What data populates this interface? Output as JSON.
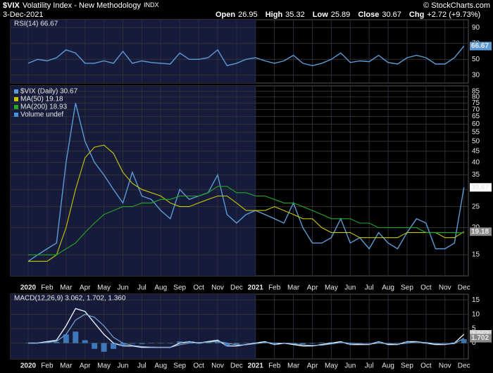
{
  "header": {
    "symbol": "$VIX",
    "name": "Volatility Index - New Methodology",
    "exchange": "INDX",
    "date": "3-Dec-2021",
    "quote": [
      {
        "label": "Open",
        "value": 26.95
      },
      {
        "label": "High",
        "value": 35.32
      },
      {
        "label": "Low",
        "value": 25.89
      },
      {
        "label": "Close",
        "value": 30.67
      },
      {
        "label": "Chg",
        "value": "+2.72 (+9.73%)"
      }
    ],
    "copyright": "© StockCharts.com"
  },
  "chart_data": [
    {
      "type": "line",
      "title": "RSI(14) 66.67",
      "ylim": [
        20,
        100
      ],
      "yticks": [
        30,
        50,
        70,
        90
      ],
      "grid": true,
      "series": [
        {
          "color": "#5b9bd5",
          "values": [
            45,
            50,
            48,
            52,
            62,
            58,
            45,
            45,
            48,
            45,
            60,
            45,
            48,
            46,
            45,
            44,
            58,
            50,
            50,
            52,
            62,
            42,
            45,
            50,
            52,
            48,
            45,
            48,
            55,
            45,
            42,
            45,
            50,
            58,
            46,
            48,
            47,
            55,
            46,
            44,
            52,
            55,
            52,
            44,
            44,
            52,
            66.67
          ]
        }
      ]
    },
    {
      "type": "line",
      "log_scale": true,
      "ylim": [
        12,
        90
      ],
      "yticks": [
        15,
        20,
        25,
        30,
        35,
        40,
        45,
        50,
        55,
        60,
        65,
        70,
        75,
        80,
        85
      ],
      "grid": true,
      "legend": "top-left",
      "extra_legend": "Volume undef",
      "categories": [
        "2020",
        null,
        "Feb",
        null,
        "Mar",
        null,
        "Apr",
        null,
        "May",
        null,
        "Jun",
        null,
        "Jul",
        null,
        "Aug",
        null,
        "Sep",
        null,
        "Oct",
        null,
        "Nov",
        null,
        "Dec",
        null,
        "2021",
        null,
        "Feb",
        null,
        "Mar",
        null,
        "Apr",
        null,
        "May",
        null,
        "Jun",
        null,
        "Jul",
        null,
        "Aug",
        null,
        "Sep",
        null,
        "Oct",
        null,
        "Nov",
        null,
        "Dec"
      ],
      "series": [
        {
          "name": "$VIX (Daily) 30.67",
          "color": "#5b9bd5",
          "values": [
            14,
            15,
            16,
            17,
            40,
            75,
            50,
            40,
            35,
            30,
            26,
            36,
            28,
            27,
            24,
            22,
            30,
            27,
            28,
            29,
            35,
            23,
            21,
            23,
            24,
            23,
            22,
            21,
            26,
            20,
            17,
            17,
            18,
            22,
            17,
            18,
            16,
            19,
            17,
            16,
            19,
            22,
            21,
            16,
            16,
            17,
            30.67
          ]
        },
        {
          "name": "MA(50) 19.18",
          "color": "#c8c800",
          "values": [
            14,
            14,
            14,
            15,
            20,
            30,
            42,
            47,
            48,
            44,
            36,
            32,
            30,
            29,
            28,
            26,
            25,
            25,
            26,
            27,
            28,
            28,
            26,
            24,
            24,
            24,
            25,
            24,
            23,
            22,
            22,
            20,
            19,
            19,
            19,
            18,
            18,
            18,
            18,
            18,
            19,
            19,
            19,
            19,
            18,
            18,
            19.18
          ]
        },
        {
          "name": "MA(200) 18.93",
          "color": "#22aa22",
          "values": [
            15,
            15,
            15,
            15,
            16,
            17,
            19,
            21,
            23,
            24,
            25,
            25,
            26,
            26,
            27,
            27,
            28,
            28,
            28,
            29,
            31,
            31,
            29,
            29,
            28,
            28,
            27,
            26,
            26,
            25,
            24,
            23,
            22,
            22,
            22,
            21,
            21,
            20,
            20,
            20,
            20,
            20,
            19,
            19,
            19,
            19,
            18.93
          ]
        }
      ]
    },
    {
      "type": "macd",
      "title": "MACD(12,26,9) 3.062, 1.702, 1.360",
      "ylim": [
        -5.5,
        17
      ],
      "yticks": [
        0,
        5,
        10,
        15
      ],
      "grid": true,
      "categories": [
        "2020",
        null,
        "Feb",
        null,
        "Mar",
        null,
        "Apr",
        null,
        "May",
        null,
        "Jun",
        null,
        "Jul",
        null,
        "Aug",
        null,
        "Sep",
        null,
        "Oct",
        null,
        "Nov",
        null,
        "Dec",
        null,
        "2021",
        null,
        "Feb",
        null,
        "Mar",
        null,
        "Apr",
        null,
        "May",
        null,
        "Jun",
        null,
        "Jul",
        null,
        "Aug",
        null,
        "Sep",
        null,
        "Oct",
        null,
        "Nov",
        null,
        "Dec"
      ],
      "series": [
        {
          "color": "#e8f0ff",
          "values": [
            0,
            0,
            0.5,
            1,
            6,
            12,
            11,
            7,
            3,
            0,
            -1,
            -1,
            -1.5,
            -1.5,
            -1.5,
            -1.5,
            0,
            0.5,
            0,
            0.5,
            1,
            -1,
            -1,
            -0.5,
            0,
            0.5,
            -0.5,
            0,
            -0.5,
            -1,
            -1,
            -0.5,
            0,
            0.5,
            -0.5,
            -0.5,
            -0.5,
            0.5,
            -0.5,
            -0.5,
            0.5,
            0.5,
            0,
            -0.5,
            -0.5,
            0,
            3.062
          ]
        },
        {
          "color": "#7fb0e0",
          "values": [
            0,
            0,
            0.2,
            0.6,
            3,
            8,
            10,
            9,
            6,
            2,
            0,
            -0.8,
            -1.2,
            -1.4,
            -1.5,
            -1.5,
            -0.6,
            0,
            0.2,
            0.3,
            0.6,
            0,
            -0.6,
            -0.6,
            -0.2,
            0.2,
            0,
            0,
            -0.2,
            -0.6,
            -0.8,
            -0.7,
            -0.3,
            0.2,
            0,
            -0.3,
            -0.4,
            0,
            -0.2,
            -0.4,
            0,
            0.4,
            0.2,
            -0.2,
            -0.4,
            -0.2,
            1.702
          ]
        },
        {
          "type": "bar",
          "color": "#4a90d9",
          "values": [
            0,
            0,
            0.3,
            0.4,
            3,
            4,
            1,
            -2,
            -3,
            -2,
            -1,
            -0.2,
            -0.3,
            -0.1,
            0,
            0,
            0.6,
            0.5,
            -0.2,
            0.2,
            0.4,
            -1,
            -0.4,
            0.1,
            0.2,
            0.3,
            -0.5,
            0,
            -0.3,
            -0.4,
            -0.2,
            0.2,
            0.3,
            0.3,
            -0.5,
            -0.2,
            -0.1,
            0.5,
            -0.3,
            -0.1,
            0.5,
            0.1,
            -0.2,
            -0.3,
            -0.1,
            0.2,
            1.36
          ]
        }
      ]
    }
  ]
}
